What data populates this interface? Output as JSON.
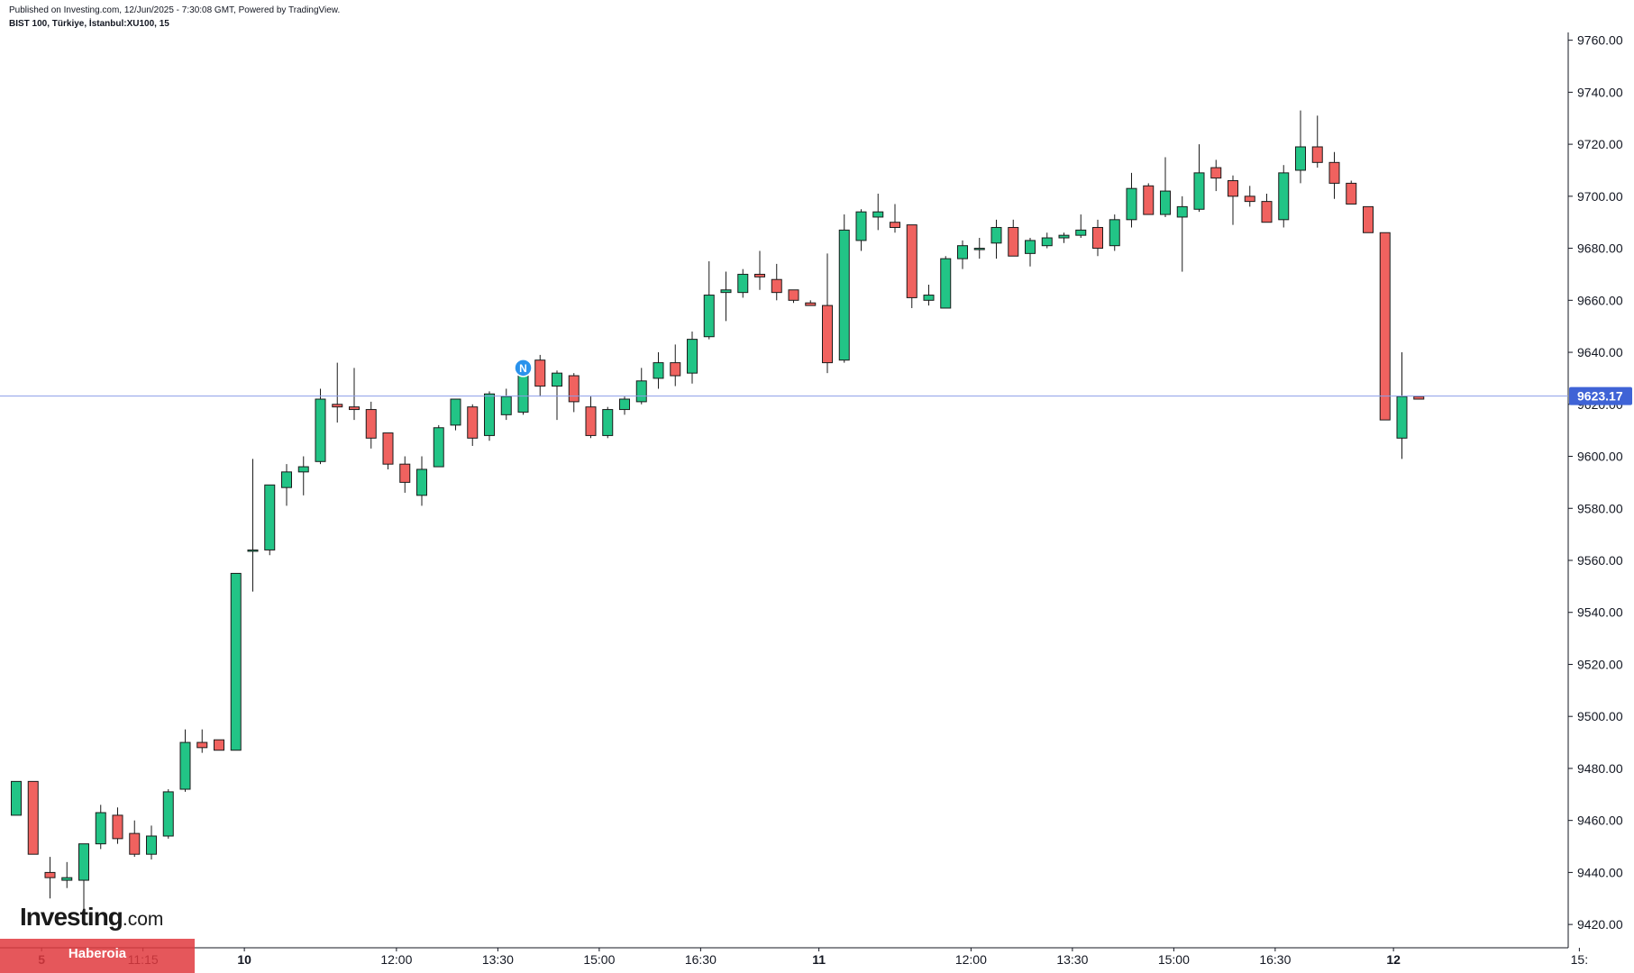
{
  "header": {
    "published": "Published on Investing.com, 12/Jun/2025 - 7:30:08 GMT, Powered by TradingView.",
    "symbol": "BIST 100, Türkiye, İstanbul:XU100, 15"
  },
  "logo": {
    "brand": "Investing",
    "suffix": ".com"
  },
  "watermark": "Haberoia",
  "colors": {
    "up": "#22c486",
    "down": "#f0625f",
    "price_line": "#8c9ee8",
    "price_badge": "#3f63d6",
    "news_badge": "#2a92ec"
  },
  "chart_data": {
    "type": "candlestick",
    "ylim": [
      9410,
      9772
    ],
    "y_ticks": [
      "9420.00",
      "9440.00",
      "9460.00",
      "9480.00",
      "9500.00",
      "9520.00",
      "9540.00",
      "9560.00",
      "9580.00",
      "9600.00",
      "9620.00",
      "9640.00",
      "9660.00",
      "9680.00",
      "9700.00",
      "9720.00",
      "9740.00",
      "9760.00"
    ],
    "x_ticks": [
      {
        "label": "5",
        "index": 1.5,
        "bold": true
      },
      {
        "label": "11:15",
        "index": 7.5,
        "bold": false
      },
      {
        "label": "10",
        "index": 13.5,
        "bold": true
      },
      {
        "label": "12:00",
        "index": 22.5,
        "bold": false
      },
      {
        "label": "13:30",
        "index": 28.5,
        "bold": false
      },
      {
        "label": "15:00",
        "index": 34.5,
        "bold": false
      },
      {
        "label": "16:30",
        "index": 40.5,
        "bold": false
      },
      {
        "label": "11",
        "index": 47.5,
        "bold": true
      },
      {
        "label": "12:00",
        "index": 56.5,
        "bold": false
      },
      {
        "label": "13:30",
        "index": 62.5,
        "bold": false
      },
      {
        "label": "15:00",
        "index": 68.5,
        "bold": false
      },
      {
        "label": "16:30",
        "index": 74.5,
        "bold": false
      },
      {
        "label": "12",
        "index": 81.5,
        "bold": true
      },
      {
        "label": "15:",
        "index": 92.5,
        "bold": false
      }
    ],
    "last_price": "9623.17",
    "news_marker": {
      "label": "N",
      "index": 30,
      "value": 9634
    },
    "candles": [
      [
        9462,
        9475,
        9462,
        9475
      ],
      [
        9475,
        9475,
        9447,
        9447
      ],
      [
        9440,
        9446,
        9430,
        9438
      ],
      [
        9437,
        9444,
        9434,
        9438
      ],
      [
        9437,
        9451,
        9424,
        9451
      ],
      [
        9451,
        9466,
        9449,
        9463
      ],
      [
        9462,
        9465,
        9451,
        9453
      ],
      [
        9455,
        9460,
        9446,
        9447
      ],
      [
        9447,
        9458,
        9445,
        9454
      ],
      [
        9454,
        9472,
        9453,
        9471
      ],
      [
        9472,
        9495,
        9471,
        9490
      ],
      [
        9490,
        9495,
        9486,
        9488
      ],
      [
        9491,
        9491,
        9487,
        9487
      ],
      [
        9487,
        9555,
        9487,
        9555
      ],
      [
        9564,
        9599,
        9548,
        9564
      ],
      [
        9564,
        9589,
        9562,
        9589
      ],
      [
        9588,
        9597,
        9581,
        9594
      ],
      [
        9594,
        9600,
        9585,
        9596
      ],
      [
        9598,
        9626,
        9597,
        9622
      ],
      [
        9620,
        9636,
        9613,
        9619
      ],
      [
        9619,
        9634,
        9614,
        9618
      ],
      [
        9618,
        9621,
        9603,
        9607
      ],
      [
        9609,
        9609,
        9595,
        9597
      ],
      [
        9597,
        9600,
        9586,
        9590
      ],
      [
        9585,
        9600,
        9581,
        9595
      ],
      [
        9596,
        9612,
        9596,
        9611
      ],
      [
        9612,
        9622,
        9610,
        9622
      ],
      [
        9619,
        9620,
        9604,
        9607
      ],
      [
        9608,
        9625,
        9606,
        9624
      ],
      [
        9616,
        9626,
        9614,
        9623
      ],
      [
        9617,
        9637,
        9616,
        9634
      ],
      [
        9637,
        9639,
        9623,
        9627
      ],
      [
        9627,
        9633,
        9614,
        9632
      ],
      [
        9631,
        9632,
        9617,
        9621
      ],
      [
        9619,
        9623,
        9607,
        9608
      ],
      [
        9608,
        9619,
        9607,
        9618
      ],
      [
        9618,
        9623,
        9616,
        9622
      ],
      [
        9621,
        9634,
        9620,
        9629
      ],
      [
        9630,
        9640,
        9626,
        9636
      ],
      [
        9636,
        9643,
        9627,
        9631
      ],
      [
        9632,
        9648,
        9628,
        9645
      ],
      [
        9646,
        9675,
        9645,
        9662
      ],
      [
        9663,
        9671,
        9652,
        9664
      ],
      [
        9663,
        9672,
        9661,
        9670
      ],
      [
        9670,
        9679,
        9664,
        9669
      ],
      [
        9668,
        9674,
        9660,
        9663
      ],
      [
        9664,
        9664,
        9659,
        9660
      ],
      [
        9659,
        9660,
        9658,
        9658
      ],
      [
        9658,
        9678,
        9632,
        9636
      ],
      [
        9637,
        9693,
        9636,
        9687
      ],
      [
        9683,
        9695,
        9679,
        9694
      ],
      [
        9692,
        9701,
        9687,
        9694
      ],
      [
        9690,
        9697,
        9686,
        9688
      ],
      [
        9689,
        9689,
        9657,
        9661
      ],
      [
        9660,
        9666,
        9658,
        9662
      ],
      [
        9657,
        9677,
        9657,
        9676
      ],
      [
        9676,
        9683,
        9672,
        9681
      ],
      [
        9680,
        9684,
        9676,
        9680
      ],
      [
        9682,
        9691,
        9676,
        9688
      ],
      [
        9688,
        9691,
        9677,
        9677
      ],
      [
        9678,
        9684,
        9673,
        9683
      ],
      [
        9681,
        9686,
        9680,
        9684
      ],
      [
        9684,
        9686,
        9682,
        9685
      ],
      [
        9685,
        9693,
        9684,
        9687
      ],
      [
        9688,
        9691,
        9677,
        9680
      ],
      [
        9681,
        9693,
        9679,
        9691
      ],
      [
        9691,
        9709,
        9688,
        9703
      ],
      [
        9704,
        9705,
        9693,
        9693
      ],
      [
        9693,
        9715,
        9692,
        9702
      ],
      [
        9692,
        9700,
        9671,
        9696
      ],
      [
        9695,
        9720,
        9694,
        9709
      ],
      [
        9711,
        9714,
        9702,
        9707
      ],
      [
        9706,
        9708,
        9689,
        9700
      ],
      [
        9700,
        9704,
        9696,
        9698
      ],
      [
        9698,
        9701,
        9690,
        9690
      ],
      [
        9691,
        9712,
        9688,
        9709
      ],
      [
        9710,
        9733,
        9705,
        9719
      ],
      [
        9719,
        9731,
        9711,
        9713
      ],
      [
        9713,
        9717,
        9699,
        9705
      ],
      [
        9705,
        9706,
        9697,
        9697
      ],
      [
        9696,
        9696,
        9686,
        9686
      ],
      [
        9686,
        9686,
        9614,
        9614
      ],
      [
        9607,
        9640,
        9599,
        9623
      ],
      [
        9623,
        9623,
        9622,
        9622
      ]
    ]
  }
}
